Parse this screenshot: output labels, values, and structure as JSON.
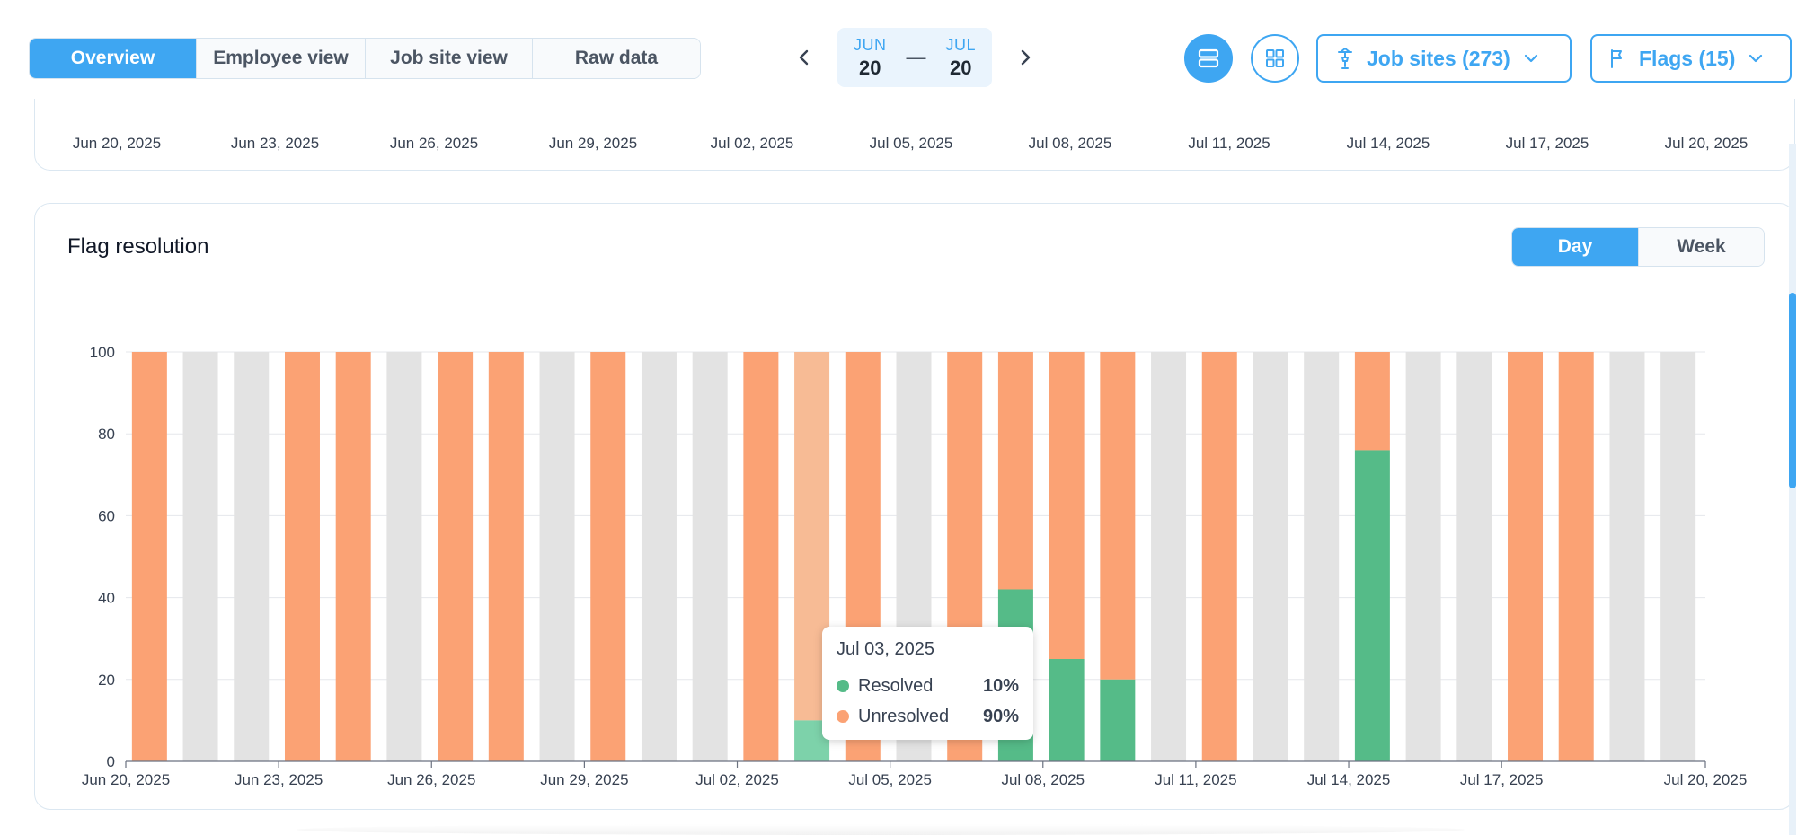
{
  "toolbar": {
    "view_tabs": [
      {
        "label": "Overview",
        "active": true
      },
      {
        "label": "Employee view",
        "active": false
      },
      {
        "label": "Job site view",
        "active": false
      },
      {
        "label": "Raw data",
        "active": false
      }
    ],
    "date_range": {
      "start_month": "JUN",
      "start_day": "20",
      "separator": "—",
      "end_month": "JUL",
      "end_day": "20"
    },
    "layout_buttons": [
      {
        "icon": "rows-icon",
        "active": true
      },
      {
        "icon": "grid-icon",
        "active": false
      }
    ],
    "job_sites_label": "Job sites (273)",
    "flags_label": "Flags (15)"
  },
  "top_card": {
    "ticks": [
      "Jun 20, 2025",
      "Jun 23, 2025",
      "Jun 26, 2025",
      "Jun 29, 2025",
      "Jul 02, 2025",
      "Jul 05, 2025",
      "Jul 08, 2025",
      "Jul 11, 2025",
      "Jul 14, 2025",
      "Jul 17, 2025",
      "Jul 20, 2025"
    ]
  },
  "flag_resolution": {
    "title": "Flag resolution",
    "toggle": [
      {
        "label": "Day",
        "active": true
      },
      {
        "label": "Week",
        "active": false
      }
    ],
    "tooltip": {
      "date": "Jul 03, 2025",
      "rows": [
        {
          "name": "Resolved",
          "value": "10%",
          "color": "#55bb88"
        },
        {
          "name": "Unresolved",
          "value": "90%",
          "color": "#fba274"
        }
      ]
    }
  },
  "colors": {
    "accent": "#3ea6f2",
    "resolved": "#55bb88",
    "unresolved": "#fba274",
    "no_data": "#e3e3e3",
    "resolved_highlight": "#7dd2aa",
    "unresolved_highlight": "#f7bb95"
  },
  "chart_data": {
    "type": "bar",
    "stacked": true,
    "categories": [
      "Jun 20, 2025",
      "Jun 21, 2025",
      "Jun 22, 2025",
      "Jun 23, 2025",
      "Jun 24, 2025",
      "Jun 25, 2025",
      "Jun 26, 2025",
      "Jun 27, 2025",
      "Jun 28, 2025",
      "Jun 29, 2025",
      "Jun 30, 2025",
      "Jul 01, 2025",
      "Jul 02, 2025",
      "Jul 03, 2025",
      "Jul 04, 2025",
      "Jul 05, 2025",
      "Jul 06, 2025",
      "Jul 07, 2025",
      "Jul 08, 2025",
      "Jul 09, 2025",
      "Jul 10, 2025",
      "Jul 11, 2025",
      "Jul 12, 2025",
      "Jul 13, 2025",
      "Jul 14, 2025",
      "Jul 15, 2025",
      "Jul 16, 2025",
      "Jul 17, 2025",
      "Jul 18, 2025",
      "Jul 19, 2025",
      "Jul 20, 2025"
    ],
    "x_tick_labels": [
      "Jun 20, 2025",
      "Jun 23, 2025",
      "Jun 26, 2025",
      "Jun 29, 2025",
      "Jul 02, 2025",
      "Jul 05, 2025",
      "Jul 08, 2025",
      "Jul 11, 2025",
      "Jul 14, 2025",
      "Jul 17, 2025",
      "Jul 20, 2025"
    ],
    "y_ticks": [
      0,
      20,
      40,
      60,
      80,
      100
    ],
    "ylim": [
      0,
      100
    ],
    "series": [
      {
        "name": "Resolved",
        "values": [
          0,
          null,
          null,
          0,
          0,
          null,
          0,
          0,
          null,
          0,
          null,
          null,
          0,
          10,
          0,
          null,
          0,
          42,
          25,
          20,
          null,
          0,
          null,
          null,
          76,
          null,
          null,
          0,
          0,
          null,
          null
        ]
      },
      {
        "name": "Unresolved",
        "values": [
          100,
          null,
          null,
          100,
          100,
          null,
          100,
          100,
          null,
          100,
          null,
          null,
          100,
          90,
          100,
          null,
          100,
          58,
          75,
          80,
          null,
          100,
          null,
          null,
          24,
          null,
          null,
          100,
          100,
          null,
          null
        ]
      }
    ],
    "highlighted_category": "Jul 03, 2025",
    "grid": true,
    "legend": "none"
  }
}
